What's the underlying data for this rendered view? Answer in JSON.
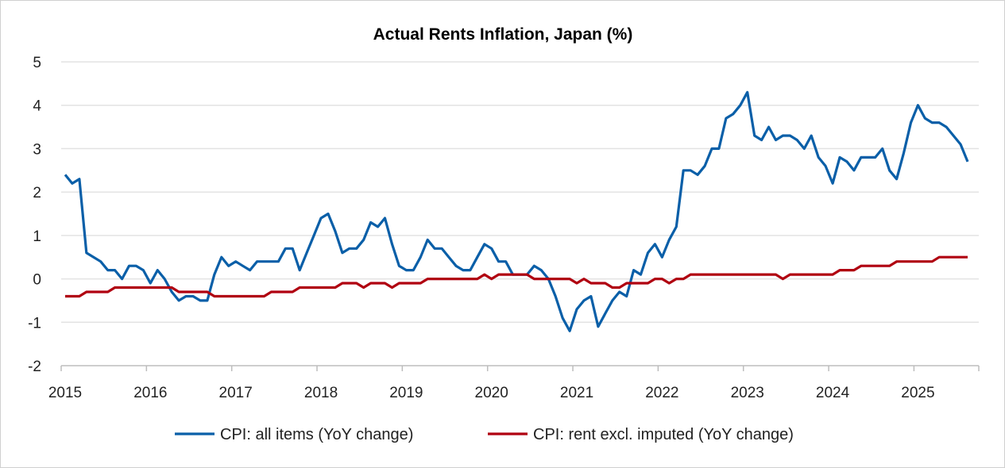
{
  "chart_data": {
    "type": "line",
    "title": "Actual Rents Inflation, Japan (%)",
    "xlabel": "",
    "ylabel": "",
    "x_start": "2015-01",
    "x_end": "2025-08",
    "frequency": "monthly",
    "x_tick_labels": [
      "2015",
      "2016",
      "2017",
      "2018",
      "2019",
      "2020",
      "2021",
      "2022",
      "2023",
      "2024",
      "2025"
    ],
    "ylim": [
      -2,
      5
    ],
    "y_ticks": [
      -2,
      -1,
      0,
      1,
      2,
      3,
      4,
      5
    ],
    "grid": "horizontal",
    "legend_position": "bottom",
    "series": [
      {
        "name": "CPI: all items (YoY change)",
        "color": "#0a5fa8",
        "values": [
          2.4,
          2.2,
          2.3,
          0.6,
          0.5,
          0.4,
          0.2,
          0.2,
          0.0,
          0.3,
          0.3,
          0.2,
          -0.1,
          0.2,
          0.0,
          -0.3,
          -0.5,
          -0.4,
          -0.4,
          -0.5,
          -0.5,
          0.1,
          0.5,
          0.3,
          0.4,
          0.3,
          0.2,
          0.4,
          0.4,
          0.4,
          0.4,
          0.7,
          0.7,
          0.2,
          0.6,
          1.0,
          1.4,
          1.5,
          1.1,
          0.6,
          0.7,
          0.7,
          0.9,
          1.3,
          1.2,
          1.4,
          0.8,
          0.3,
          0.2,
          0.2,
          0.5,
          0.9,
          0.7,
          0.7,
          0.5,
          0.3,
          0.2,
          0.2,
          0.5,
          0.8,
          0.7,
          0.4,
          0.4,
          0.1,
          0.1,
          0.1,
          0.3,
          0.2,
          0.0,
          -0.4,
          -0.9,
          -1.2,
          -0.7,
          -0.5,
          -0.4,
          -1.1,
          -0.8,
          -0.5,
          -0.3,
          -0.4,
          0.2,
          0.1,
          0.6,
          0.8,
          0.5,
          0.9,
          1.2,
          2.5,
          2.5,
          2.4,
          2.6,
          3.0,
          3.0,
          3.7,
          3.8,
          4.0,
          4.3,
          3.3,
          3.2,
          3.5,
          3.2,
          3.3,
          3.3,
          3.2,
          3.0,
          3.3,
          2.8,
          2.6,
          2.2,
          2.8,
          2.7,
          2.5,
          2.8,
          2.8,
          2.8,
          3.0,
          2.5,
          2.3,
          2.9,
          3.6,
          4.0,
          3.7,
          3.6,
          3.6,
          3.5,
          3.3,
          3.1,
          2.7
        ]
      },
      {
        "name": "CPI: rent excl. imputed (YoY change)",
        "color": "#b00010",
        "values": [
          -0.4,
          -0.4,
          -0.4,
          -0.3,
          -0.3,
          -0.3,
          -0.3,
          -0.2,
          -0.2,
          -0.2,
          -0.2,
          -0.2,
          -0.2,
          -0.2,
          -0.2,
          -0.2,
          -0.3,
          -0.3,
          -0.3,
          -0.3,
          -0.3,
          -0.4,
          -0.4,
          -0.4,
          -0.4,
          -0.4,
          -0.4,
          -0.4,
          -0.4,
          -0.3,
          -0.3,
          -0.3,
          -0.3,
          -0.2,
          -0.2,
          -0.2,
          -0.2,
          -0.2,
          -0.2,
          -0.1,
          -0.1,
          -0.1,
          -0.2,
          -0.1,
          -0.1,
          -0.1,
          -0.2,
          -0.1,
          -0.1,
          -0.1,
          -0.1,
          0.0,
          0.0,
          0.0,
          0.0,
          0.0,
          0.0,
          0.0,
          0.0,
          0.1,
          0.0,
          0.1,
          0.1,
          0.1,
          0.1,
          0.1,
          0.0,
          0.0,
          0.0,
          0.0,
          0.0,
          0.0,
          -0.1,
          0.0,
          -0.1,
          -0.1,
          -0.1,
          -0.2,
          -0.2,
          -0.1,
          -0.1,
          -0.1,
          -0.1,
          0.0,
          0.0,
          -0.1,
          0.0,
          0.0,
          0.1,
          0.1,
          0.1,
          0.1,
          0.1,
          0.1,
          0.1,
          0.1,
          0.1,
          0.1,
          0.1,
          0.1,
          0.1,
          0.0,
          0.1,
          0.1,
          0.1,
          0.1,
          0.1,
          0.1,
          0.1,
          0.2,
          0.2,
          0.2,
          0.3,
          0.3,
          0.3,
          0.3,
          0.3,
          0.4,
          0.4,
          0.4,
          0.4,
          0.4,
          0.4,
          0.5,
          0.5,
          0.5,
          0.5,
          0.5
        ]
      }
    ]
  }
}
